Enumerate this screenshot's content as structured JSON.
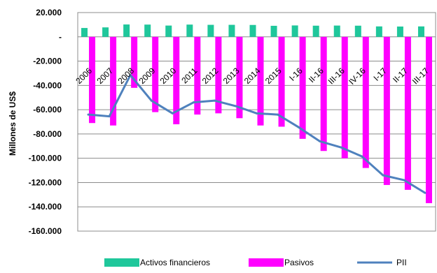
{
  "chart_data": {
    "type": "bar",
    "categories": [
      "2006",
      "2007",
      "2008",
      "2009",
      "2010",
      "2011",
      "2012",
      "2013",
      "2014",
      "2015",
      "I-16",
      "II-16",
      "III-16",
      "IV-16",
      "I-17",
      "II-17",
      "III-17"
    ],
    "series": [
      {
        "name": "Activos financieros",
        "type": "bar",
        "color": "#1fc79b",
        "values": [
          7300,
          7800,
          10200,
          10100,
          9300,
          10100,
          9900,
          9900,
          9800,
          9100,
          9400,
          9200,
          9300,
          9200,
          8600,
          8500,
          8600
        ]
      },
      {
        "name": "Pasivos",
        "type": "bar",
        "color": "#ff00ff",
        "values": [
          -71000,
          -73000,
          -42000,
          -62000,
          -72000,
          -64000,
          -63000,
          -67000,
          -73000,
          -74000,
          -84000,
          -94000,
          -100000,
          -108000,
          -122000,
          -126000,
          -137000
        ]
      },
      {
        "name": "PII",
        "type": "line",
        "color": "#4f81bd",
        "values": [
          -64000,
          -65500,
          -31500,
          -52500,
          -63000,
          -54000,
          -52500,
          -57000,
          -63000,
          -64000,
          -74500,
          -86000,
          -91000,
          -98500,
          -114000,
          -118000,
          -128500
        ]
      }
    ],
    "yticks": [
      "20.000",
      "-",
      "-20.000",
      "-40.000",
      "-60.000",
      "-80.000",
      "-100.000",
      "-120.000",
      "-140.000",
      "-160.000"
    ],
    "ytick_values": [
      20000,
      0,
      -20000,
      -40000,
      -60000,
      -80000,
      -100000,
      -120000,
      -140000,
      -160000
    ],
    "ylabel": "Millones  de US$",
    "ylim": [
      -160000,
      20000
    ],
    "grid": true,
    "legend_position": "bottom"
  }
}
